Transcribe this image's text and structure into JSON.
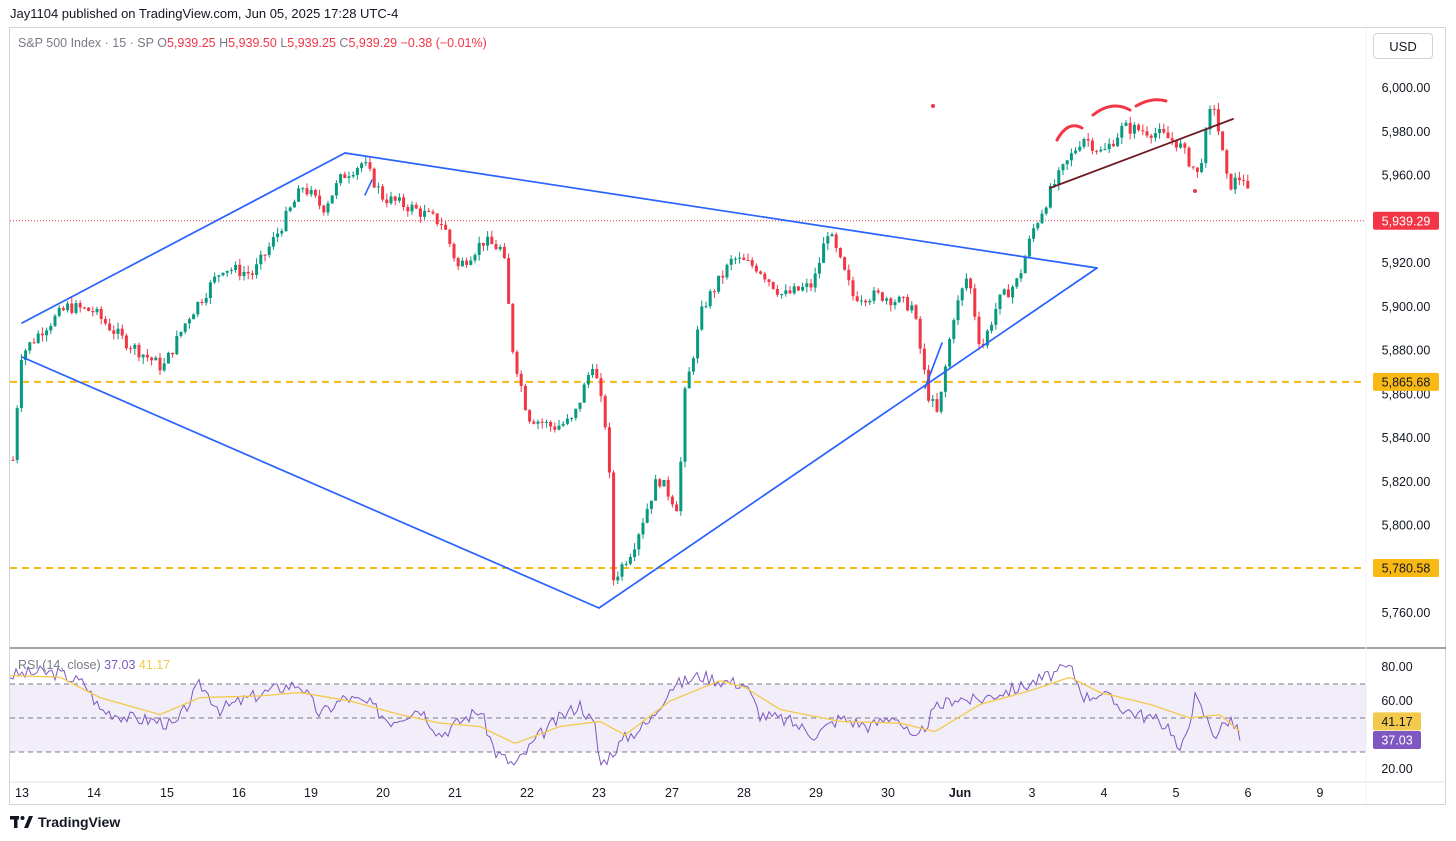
{
  "header": {
    "publisher_line": "Jay1104 published on TradingView.com, Jun 05, 2025 17:28 UTC-4"
  },
  "legend": {
    "symbol": "S&P 500 Index · 15 · SP",
    "o_label": "O",
    "o_value": "5,939.25",
    "h_label": "H",
    "h_value": "5,939.50",
    "l_label": "L",
    "l_value": "5,939.25",
    "c_label": "C",
    "c_value": "5,939.29",
    "change": "−0.38 (−0.01%)"
  },
  "currency_button": "USD",
  "colors": {
    "up": "#089981",
    "down": "#f23645",
    "trendline": "#2962ff",
    "level": "#f9b914",
    "annotation_red": "#f23645",
    "annotation_dark": "#6d1a22",
    "rsi": "#7e57c2",
    "rsi_ma": "#f2c94c"
  },
  "chart_data": [
    {
      "type": "candlestick",
      "title": "S&P 500 Index · 15 · SP",
      "x_tick_labels": [
        "13",
        "14",
        "15",
        "16",
        "19",
        "20",
        "21",
        "22",
        "23",
        "27",
        "28",
        "29",
        "30",
        "Jun",
        "3",
        "4",
        "5",
        "6",
        "9"
      ],
      "y_tick_labels": [
        "6,000.00",
        "5,980.00",
        "5,960.00",
        "5,920.00",
        "5,900.00",
        "5,880.00",
        "5,860.00",
        "5,840.00",
        "5,820.00",
        "5,800.00",
        "5,760.00"
      ],
      "ylim": [
        5750,
        6010
      ],
      "price_path": [
        [
          0,
          5830
        ],
        [
          8,
          5878
        ],
        [
          30,
          5890
        ],
        [
          55,
          5900
        ],
        [
          80,
          5898
        ],
        [
          110,
          5885
        ],
        [
          150,
          5872
        ],
        [
          175,
          5895
        ],
        [
          210,
          5918
        ],
        [
          240,
          5915
        ],
        [
          260,
          5930
        ],
        [
          290,
          5955
        ],
        [
          310,
          5945
        ],
        [
          330,
          5960
        ],
        [
          350,
          5966
        ],
        [
          370,
          5950
        ],
        [
          400,
          5945
        ],
        [
          430,
          5938
        ],
        [
          445,
          5918
        ],
        [
          470,
          5930
        ],
        [
          490,
          5926
        ],
        [
          500,
          5880
        ],
        [
          515,
          5850
        ],
        [
          540,
          5845
        ],
        [
          560,
          5848
        ],
        [
          580,
          5875
        ],
        [
          595,
          5840
        ],
        [
          600,
          5775
        ],
        [
          620,
          5790
        ],
        [
          645,
          5822
        ],
        [
          665,
          5808
        ],
        [
          672,
          5860
        ],
        [
          690,
          5900
        ],
        [
          720,
          5922
        ],
        [
          745,
          5918
        ],
        [
          770,
          5905
        ],
        [
          800,
          5910
        ],
        [
          815,
          5935
        ],
        [
          840,
          5905
        ],
        [
          870,
          5905
        ],
        [
          900,
          5900
        ],
        [
          915,
          5860
        ],
        [
          925,
          5850
        ],
        [
          940,
          5895
        ],
        [
          955,
          5915
        ],
        [
          968,
          5880
        ],
        [
          985,
          5902
        ],
        [
          1005,
          5912
        ],
        [
          1020,
          5935
        ],
        [
          1040,
          5955
        ],
        [
          1070,
          5978
        ],
        [
          1090,
          5970
        ],
        [
          1110,
          5982
        ],
        [
          1140,
          5980
        ],
        [
          1165,
          5975
        ],
        [
          1185,
          5960
        ],
        [
          1200,
          5995
        ],
        [
          1215,
          5955
        ],
        [
          1230,
          5960
        ],
        [
          1242,
          5939
        ]
      ],
      "current_price_label": "5,939.29",
      "current_price": 5939.29,
      "levels": [
        {
          "label": "5,865.68",
          "value": 5865.68
        },
        {
          "label": "5,780.58",
          "value": 5780.58
        }
      ]
    },
    {
      "type": "line",
      "title": "RSI (14, close)",
      "series": [
        {
          "name": "37.03",
          "value_label": "37.03"
        },
        {
          "name": "41.17",
          "value_label": "41.17"
        }
      ],
      "y_tick_labels": [
        "80.00",
        "60.00",
        "20.00"
      ],
      "ylim": [
        15,
        85
      ],
      "bands": [
        70,
        50,
        30
      ],
      "rsi_path": [
        [
          10,
          75
        ],
        [
          40,
          77
        ],
        [
          60,
          76
        ],
        [
          85,
          70
        ],
        [
          100,
          55
        ],
        [
          130,
          50
        ],
        [
          160,
          48
        ],
        [
          175,
          45
        ],
        [
          200,
          70
        ],
        [
          220,
          55
        ],
        [
          250,
          62
        ],
        [
          280,
          68
        ],
        [
          300,
          70
        ],
        [
          320,
          52
        ],
        [
          345,
          62
        ],
        [
          370,
          58
        ],
        [
          390,
          48
        ],
        [
          420,
          56
        ],
        [
          440,
          40
        ],
        [
          460,
          48
        ],
        [
          480,
          55
        ],
        [
          495,
          30
        ],
        [
          515,
          22
        ],
        [
          540,
          40
        ],
        [
          560,
          50
        ],
        [
          580,
          58
        ],
        [
          595,
          45
        ],
        [
          600,
          22
        ],
        [
          625,
          38
        ],
        [
          650,
          48
        ],
        [
          670,
          68
        ],
        [
          700,
          75
        ],
        [
          720,
          72
        ],
        [
          745,
          70
        ],
        [
          760,
          52
        ],
        [
          790,
          48
        ],
        [
          815,
          40
        ],
        [
          840,
          50
        ],
        [
          870,
          45
        ],
        [
          895,
          52
        ],
        [
          915,
          35
        ],
        [
          935,
          55
        ],
        [
          955,
          62
        ],
        [
          975,
          60
        ],
        [
          1000,
          65
        ],
        [
          1020,
          68
        ],
        [
          1050,
          75
        ],
        [
          1070,
          80
        ],
        [
          1085,
          62
        ],
        [
          1100,
          65
        ],
        [
          1125,
          55
        ],
        [
          1150,
          50
        ],
        [
          1170,
          45
        ],
        [
          1180,
          28
        ],
        [
          1195,
          62
        ],
        [
          1215,
          40
        ],
        [
          1230,
          50
        ],
        [
          1242,
          37
        ]
      ],
      "ma_path": [
        [
          10,
          75
        ],
        [
          60,
          74
        ],
        [
          100,
          62
        ],
        [
          160,
          52
        ],
        [
          200,
          62
        ],
        [
          260,
          63
        ],
        [
          300,
          65
        ],
        [
          350,
          60
        ],
        [
          400,
          52
        ],
        [
          440,
          47
        ],
        [
          480,
          45
        ],
        [
          515,
          35
        ],
        [
          560,
          45
        ],
        [
          600,
          48
        ],
        [
          625,
          40
        ],
        [
          670,
          60
        ],
        [
          720,
          72
        ],
        [
          745,
          68
        ],
        [
          780,
          55
        ],
        [
          840,
          48
        ],
        [
          900,
          47
        ],
        [
          935,
          42
        ],
        [
          980,
          58
        ],
        [
          1030,
          66
        ],
        [
          1070,
          74
        ],
        [
          1100,
          65
        ],
        [
          1150,
          58
        ],
        [
          1190,
          50
        ],
        [
          1220,
          52
        ],
        [
          1242,
          41
        ]
      ]
    }
  ]
}
